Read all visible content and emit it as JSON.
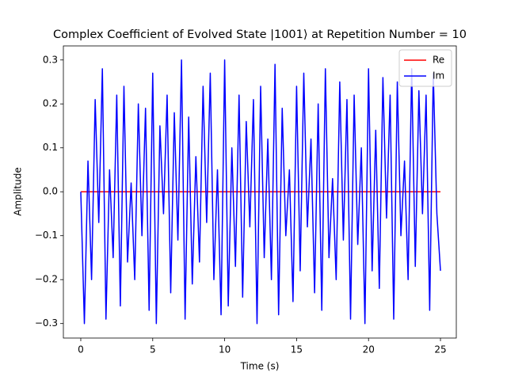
{
  "chart_data": {
    "type": "line",
    "title": "Complex Coefficient of Evolved State |1001⟩ at Repetition Number = 10",
    "x_label": "Time (s)",
    "y_label": "Amplitude",
    "x": [
      0,
      0.25,
      0.5,
      0.75,
      1,
      1.25,
      1.5,
      1.75,
      2,
      2.25,
      2.5,
      2.75,
      3,
      3.25,
      3.5,
      3.75,
      4,
      4.25,
      4.5,
      4.75,
      5,
      5.25,
      5.5,
      5.75,
      6,
      6.25,
      6.5,
      6.75,
      7,
      7.25,
      7.5,
      7.75,
      8,
      8.25,
      8.5,
      8.75,
      9,
      9.25,
      9.5,
      9.75,
      10,
      10.25,
      10.5,
      10.75,
      11,
      11.25,
      11.5,
      11.75,
      12,
      12.25,
      12.5,
      12.75,
      13,
      13.25,
      13.5,
      13.75,
      14,
      14.25,
      14.5,
      14.75,
      15,
      15.25,
      15.5,
      15.75,
      16,
      16.25,
      16.5,
      16.75,
      17,
      17.25,
      17.5,
      17.75,
      18,
      18.25,
      18.5,
      18.75,
      19,
      19.25,
      19.5,
      19.75,
      20,
      20.25,
      20.5,
      20.75,
      21,
      21.25,
      21.5,
      21.75,
      22,
      22.25,
      22.5,
      22.75,
      23,
      23.25,
      23.5,
      23.75,
      24,
      24.25,
      24.5,
      24.75,
      25
    ],
    "series": [
      {
        "name": "Re",
        "color": "#ff0000",
        "values": [
          0,
          0,
          0,
          0,
          0,
          0,
          0,
          0,
          0,
          0,
          0,
          0,
          0,
          0,
          0,
          0,
          0,
          0,
          0,
          0,
          0,
          0,
          0,
          0,
          0,
          0,
          0,
          0,
          0,
          0,
          0,
          0,
          0,
          0,
          0,
          0,
          0,
          0,
          0,
          0,
          0,
          0,
          0,
          0,
          0,
          0,
          0,
          0,
          0,
          0,
          0,
          0,
          0,
          0,
          0,
          0,
          0,
          0,
          0,
          0,
          0,
          0,
          0,
          0,
          0,
          0,
          0,
          0,
          0,
          0,
          0,
          0,
          0,
          0,
          0,
          0,
          0,
          0,
          0,
          0,
          0,
          0,
          0,
          0,
          0,
          0,
          0,
          0,
          0,
          0,
          0,
          0,
          0,
          0,
          0,
          0,
          0,
          0,
          0,
          0,
          0
        ]
      },
      {
        "name": "Im",
        "color": "#0000ff",
        "values": [
          0,
          -0.3,
          0.07,
          -0.2,
          0.21,
          -0.07,
          0.28,
          -0.29,
          0.05,
          -0.15,
          0.22,
          -0.26,
          0.24,
          -0.16,
          0.02,
          -0.2,
          0.2,
          -0.1,
          0.19,
          -0.27,
          0.27,
          -0.3,
          0.15,
          -0.05,
          0.22,
          -0.23,
          0.18,
          -0.11,
          0.3,
          -0.29,
          0.17,
          -0.21,
          0.08,
          -0.16,
          0.24,
          -0.07,
          0.27,
          -0.2,
          0.05,
          -0.28,
          0.3,
          -0.26,
          0.1,
          -0.17,
          0.22,
          -0.24,
          0.16,
          -0.08,
          0.21,
          -0.3,
          0.24,
          -0.15,
          0.12,
          -0.2,
          0.29,
          -0.28,
          0.19,
          -0.1,
          0.05,
          -0.25,
          0.24,
          -0.18,
          0.27,
          -0.08,
          0.12,
          -0.23,
          0.2,
          -0.27,
          0.28,
          -0.15,
          0.03,
          -0.2,
          0.25,
          -0.11,
          0.21,
          -0.29,
          0.22,
          -0.12,
          0.1,
          -0.3,
          0.28,
          -0.18,
          0.14,
          -0.22,
          0.26,
          -0.06,
          0.22,
          -0.29,
          0.25,
          -0.1,
          0.07,
          -0.2,
          0.28,
          -0.17,
          0.23,
          -0.05,
          0.22,
          -0.27,
          0.27,
          -0.05,
          -0.18
        ]
      }
    ],
    "xlim": [
      -1.21,
      26.1
    ],
    "ylim": [
      -0.333,
      0.332
    ],
    "xticks": [
      0,
      5,
      10,
      15,
      20,
      25
    ],
    "yticks": [
      {
        "value": -0.3,
        "label": "−0.3"
      },
      {
        "value": -0.2,
        "label": "−0.2"
      },
      {
        "value": -0.1,
        "label": "−0.1"
      },
      {
        "value": 0,
        "label": "0.0"
      },
      0.1,
      0.2,
      0.3
    ],
    "legend": "upper right"
  }
}
